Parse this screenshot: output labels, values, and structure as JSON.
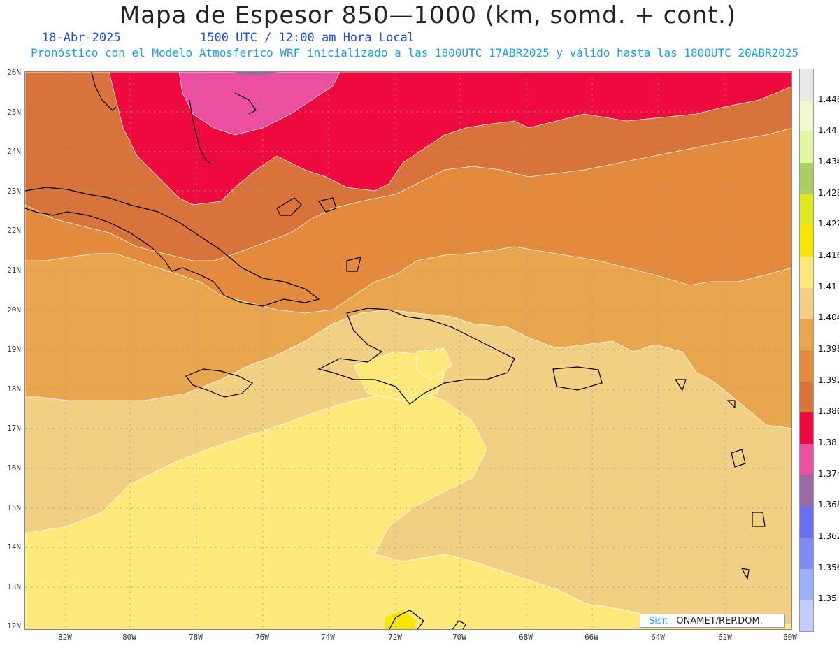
{
  "header": {
    "title": "Mapa de Espesor 850—1000 (km, somd. + cont.)",
    "date": "18-Abr-2025",
    "time": "1500 UTC / 12:00 am Hora Local",
    "forecast": "Pronóstico con el Modelo Atmosferico WRF inicializado a las 1800UTC_17ABR2025 y válido hasta las  1800UTC_20ABR2025"
  },
  "axes": {
    "lat_labels": [
      "26N",
      "25N",
      "24N",
      "23N",
      "22N",
      "21N",
      "20N",
      "19N",
      "18N",
      "17N",
      "16N",
      "15N",
      "14N",
      "13N",
      "12N"
    ],
    "lon_labels": [
      "82W",
      "80W",
      "78W",
      "76W",
      "74W",
      "72W",
      "70W",
      "68W",
      "66W",
      "64W",
      "62W",
      "60W"
    ]
  },
  "colorbar": {
    "labels": [
      "1.446",
      "1.44",
      "1.434",
      "1.428",
      "1.422",
      "1.416",
      "1.41",
      "1.404",
      "1.398",
      "1.392",
      "1.386",
      "1.38",
      "1.374",
      "1.368",
      "1.362",
      "1.356",
      "1.35"
    ],
    "colors": [
      "#e8e8e8",
      "#f2f6cc",
      "#e2f5a0",
      "#a8cf60",
      "#dde81e",
      "#f7e600",
      "#fde97a",
      "#f2d083",
      "#e9a54e",
      "#e38a3c",
      "#d8743a",
      "#ee0a3f",
      "#ea4fa0",
      "#9a6aa6",
      "#6a6cf2",
      "#7f8cf8",
      "#9bb2fb",
      "#c2ccfb"
    ]
  },
  "credit": {
    "brand": "Sisπ",
    "text": "- ONAMET/REP.DOM."
  }
}
